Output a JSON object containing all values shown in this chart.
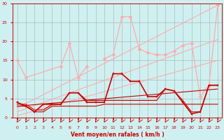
{
  "background_color": "#cff0f0",
  "grid_color": "#aaaaaa",
  "xlabel": "Vent moyen/en rafales ( km/h )",
  "xlim": [
    -0.5,
    23.5
  ],
  "ylim": [
    0,
    30
  ],
  "yticks": [
    0,
    5,
    10,
    15,
    20,
    25,
    30
  ],
  "xticks": [
    0,
    1,
    2,
    3,
    4,
    5,
    6,
    7,
    8,
    9,
    10,
    11,
    12,
    13,
    14,
    15,
    16,
    17,
    18,
    19,
    20,
    21,
    22,
    23
  ],
  "series": [
    {
      "x": [
        0,
        23
      ],
      "y": [
        2.5,
        29.5
      ],
      "color": "#ffaaaa",
      "marker": null,
      "linewidth": 0.8,
      "linestyle": "-"
    },
    {
      "x": [
        0,
        23
      ],
      "y": [
        1.5,
        20.5
      ],
      "color": "#ffaaaa",
      "marker": null,
      "linewidth": 0.8,
      "linestyle": "-"
    },
    {
      "x": [
        0,
        23
      ],
      "y": [
        0.5,
        15.0
      ],
      "color": "#ffaaaa",
      "marker": null,
      "linewidth": 0.8,
      "linestyle": "-"
    },
    {
      "x": [
        0,
        1,
        5,
        6,
        7,
        8
      ],
      "y": [
        15.0,
        10.5,
        13.5,
        19.5,
        10.5,
        13.5
      ],
      "color": "#ffaaaa",
      "marker": "D",
      "markersize": 2.5,
      "linewidth": 0.9,
      "linestyle": "-"
    },
    {
      "x": [
        10,
        11,
        12,
        13,
        14
      ],
      "y": [
        15.5,
        16.5,
        26.5,
        26.5,
        18.0
      ],
      "color": "#ffaaaa",
      "marker": "D",
      "markersize": 2.5,
      "linewidth": 0.9,
      "linestyle": "-"
    },
    {
      "x": [
        14,
        15,
        16,
        17,
        18,
        19,
        20,
        21,
        22,
        23
      ],
      "y": [
        18.0,
        17.0,
        16.5,
        16.5,
        17.5,
        19.0,
        19.5,
        5.5,
        8.5,
        29.5
      ],
      "color": "#ffaaaa",
      "marker": "D",
      "markersize": 2.5,
      "linewidth": 0.9,
      "linestyle": "-"
    },
    {
      "x": [
        0,
        1,
        2,
        3,
        4,
        5,
        6,
        7,
        8,
        9,
        10,
        11,
        12,
        13,
        14,
        15,
        16,
        17,
        18,
        19,
        20,
        21,
        22,
        23
      ],
      "y": [
        4.0,
        3.0,
        1.5,
        3.5,
        3.5,
        3.5,
        6.5,
        6.5,
        4.0,
        4.0,
        4.0,
        11.5,
        11.5,
        9.5,
        9.5,
        5.5,
        5.5,
        7.5,
        7.0,
        4.0,
        1.0,
        1.5,
        8.5,
        8.5
      ],
      "color": "#cc0000",
      "marker": "s",
      "markersize": 2.0,
      "linewidth": 1.2,
      "linestyle": "-"
    },
    {
      "x": [
        0,
        1,
        2,
        3,
        4,
        5,
        6,
        7,
        8,
        9,
        10,
        11,
        12,
        13,
        14,
        15,
        16,
        17,
        18,
        19,
        20,
        21,
        22,
        23
      ],
      "y": [
        3.0,
        3.0,
        1.5,
        1.5,
        3.0,
        3.0,
        3.0,
        3.0,
        3.0,
        3.0,
        3.5,
        3.5,
        3.5,
        3.5,
        3.5,
        3.5,
        3.5,
        3.5,
        3.5,
        3.5,
        3.5,
        3.5,
        3.5,
        3.5
      ],
      "color": "#cc0000",
      "marker": null,
      "markersize": 0,
      "linewidth": 0.8,
      "linestyle": "-"
    },
    {
      "x": [
        0,
        1,
        2,
        3,
        4,
        5,
        6,
        7,
        8,
        9,
        10,
        11,
        12,
        13,
        14,
        15,
        16,
        17,
        18,
        19,
        20,
        21,
        22,
        23
      ],
      "y": [
        3.5,
        3.5,
        2.0,
        2.0,
        3.5,
        3.5,
        6.5,
        6.5,
        4.5,
        4.5,
        4.5,
        4.5,
        4.5,
        4.5,
        4.5,
        4.5,
        4.5,
        7.5,
        7.0,
        4.5,
        1.5,
        1.5,
        8.5,
        8.5
      ],
      "color": "#cc0000",
      "marker": null,
      "markersize": 0,
      "linewidth": 0.8,
      "linestyle": "-"
    },
    {
      "x": [
        0,
        23
      ],
      "y": [
        3.0,
        7.5
      ],
      "color": "#cc0000",
      "marker": null,
      "markersize": 0,
      "linewidth": 0.8,
      "linestyle": "-"
    }
  ],
  "wind_symbols": [
    0,
    1,
    2,
    3,
    4,
    5,
    6,
    7,
    8,
    9,
    10,
    11,
    12,
    13,
    14,
    15,
    16,
    17,
    18,
    19,
    20,
    21,
    22,
    23
  ]
}
